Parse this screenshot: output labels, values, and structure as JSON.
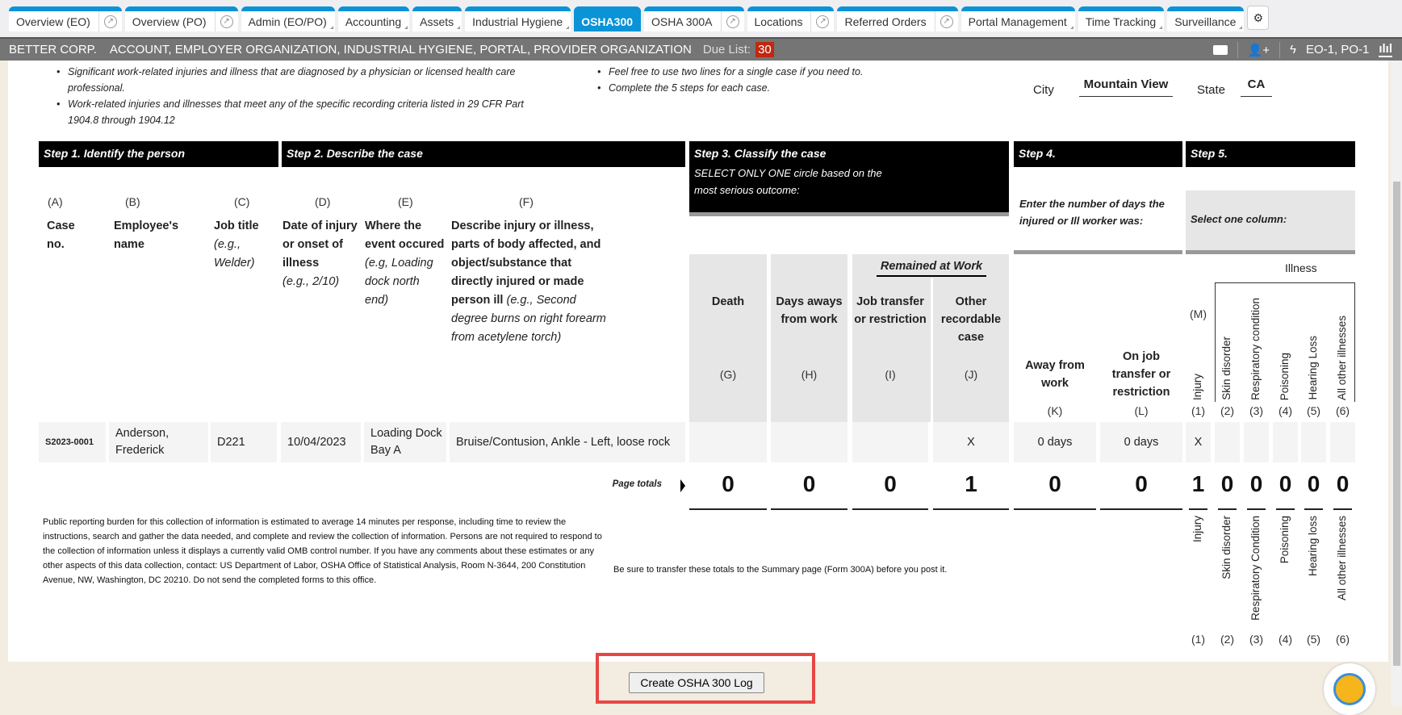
{
  "tabs": [
    {
      "label": "Overview (EO)",
      "ext": true
    },
    {
      "label": "Overview (PO)",
      "ext": true
    },
    {
      "label": "Admin (EO/PO)",
      "menu": true
    },
    {
      "label": "Accounting",
      "menu": true
    },
    {
      "label": "Assets",
      "menu": true
    },
    {
      "label": "Industrial Hygiene",
      "menu": true
    },
    {
      "label": "OSHA300",
      "active": true
    },
    {
      "label": "OSHA 300A",
      "ext": true
    },
    {
      "label": "Locations",
      "ext": true
    },
    {
      "label": "Referred Orders",
      "ext": true
    },
    {
      "label": "Portal Management",
      "menu": true
    },
    {
      "label": "Time Tracking",
      "menu": true
    },
    {
      "label": "Surveillance",
      "menu": true
    }
  ],
  "topbar": {
    "company": "BETTER CORP.",
    "roles": "ACCOUNT, EMPLOYER ORGANIZATION, INDUSTRIAL HYGIENE, PORTAL, PROVIDER ORGANIZATION",
    "due_label": "Due List:",
    "due_count": "30",
    "org_ids": "EO-1, PO-1",
    "accent": "#0a93d6"
  },
  "instructions": {
    "left": [
      "Significant work-related injuries and illness that are diagnosed by a physician or licensed health care professional.",
      "Work-related injuries and illnesses that meet any of the specific recording criteria listed in 29 CFR Part 1904.8 through 1904.12"
    ],
    "right": [
      "Feel free to use two lines for a single case if you need to.",
      "Complete the 5 steps for each case."
    ]
  },
  "location": {
    "city_label": "City",
    "city": "Mountain View",
    "state_label": "State",
    "state": "CA"
  },
  "steps": {
    "s1": "Step 1. Identify the person",
    "s2": "Step 2. Describe the case",
    "s3": "Step 3. Classify the case",
    "s3_sub": "SELECT ONLY ONE circle based on the most serious outcome:",
    "s4": "Step 4.",
    "s4_sub": "Enter the number of days the injured or Ill worker was:",
    "s5": "Step 5.",
    "s5_sub": "Select one column:"
  },
  "columns": {
    "A": {
      "letter": "(A)",
      "label": "Case no."
    },
    "B": {
      "letter": "(B)",
      "label": "Employee's name"
    },
    "C": {
      "letter": "(C)",
      "label": "Job title",
      "hint": "(e.g., Welder)"
    },
    "D": {
      "letter": "(D)",
      "label": "Date of injury or onset of illness",
      "hint": "(e.g., 2/10)"
    },
    "E": {
      "letter": "(E)",
      "label": "Where the event occured",
      "hint": "(e.g, Loading dock north end)"
    },
    "F": {
      "letter": "(F)",
      "label": "Describe injury or illness, parts of body affected, and object/substance that directly injured or made person ill",
      "hint": "(e.g., Second degree burns on right forearm from acetylene torch)"
    },
    "remained": "Remained at Work",
    "G": {
      "letter": "(G)",
      "label": "Death"
    },
    "H": {
      "letter": "(H)",
      "label": "Days aways from work"
    },
    "I": {
      "letter": "(I)",
      "label": "Job transfer or restriction"
    },
    "J": {
      "letter": "(J)",
      "label": "Other recordable case"
    },
    "K": {
      "letter": "(K)",
      "label": "Away from work"
    },
    "L": {
      "letter": "(L)",
      "label": "On job transfer or restriction"
    },
    "M": "(M)",
    "illness": "Illness",
    "types": [
      {
        "n": "(1)",
        "label": "Injury"
      },
      {
        "n": "(2)",
        "label": "Skin disorder"
      },
      {
        "n": "(3)",
        "label": "Respiratory condition"
      },
      {
        "n": "(4)",
        "label": "Poisoning"
      },
      {
        "n": "(5)",
        "label": "Hearing Loss"
      },
      {
        "n": "(6)",
        "label": "All other illnesses"
      }
    ]
  },
  "rows": [
    {
      "case": "S2023-0001",
      "name": "Anderson, Frederick",
      "job": "D221",
      "date": "10/04/2023",
      "where": "Loading Dock Bay A",
      "desc": "Bruise/Contusion, Ankle - Left, loose rock",
      "G": "",
      "H": "",
      "I": "",
      "J": "X",
      "K": "0 days",
      "L": "0 days",
      "t1": "X",
      "t2": "",
      "t3": "",
      "t4": "",
      "t5": "",
      "t6": ""
    }
  ],
  "totals": {
    "label": "Page totals",
    "G": "0",
    "H": "0",
    "I": "0",
    "J": "1",
    "K": "0",
    "L": "0",
    "t": [
      "1",
      "0",
      "0",
      "0",
      "0",
      "0"
    ]
  },
  "footer": {
    "burden": "Public reporting burden for this collection of information is estimated to average 14 minutes per response, including time to review the instructions, search and gather the data needed, and complete and review the collection of information. Persons are not required to respond to the collection of information unless it displays a currently valid OMB control number. If you have any comments about these estimates or any other aspects of this data collection, contact: US Department of Labor, OSHA Office of Statistical Analysis, Room N-3644, 200 Constitution Avenue, NW, Washington, DC 20210. Do not send the completed forms to this office.",
    "transfer": "Be sure to transfer these totals to the Summary page (Form 300A) before you post it.",
    "types": [
      {
        "n": "(1)",
        "label": "Injury"
      },
      {
        "n": "(2)",
        "label": "Skin disorder"
      },
      {
        "n": "(3)",
        "label": "Respiratory Condition"
      },
      {
        "n": "(4)",
        "label": "Poisoning"
      },
      {
        "n": "(5)",
        "label": "Hearing loss"
      },
      {
        "n": "(6)",
        "label": "All other illnesses"
      }
    ]
  },
  "create_button": "Create OSHA 300 Log"
}
